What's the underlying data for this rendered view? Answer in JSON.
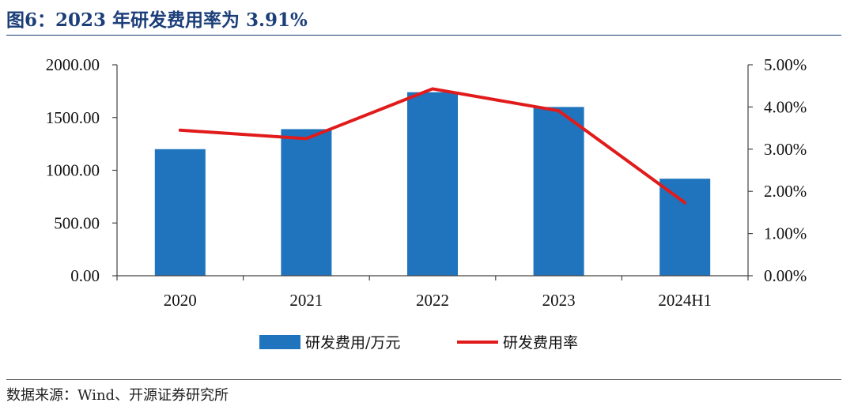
{
  "figure": {
    "title": "图6：2023 年研发费用率为 3.91%",
    "source": "数据来源：Wind、开源证券研究所"
  },
  "colors": {
    "bar": "#1f74bd",
    "line": "#e11b1b",
    "title": "#1c3f7a"
  },
  "chart_data": {
    "type": "bar",
    "categories": [
      "2020",
      "2021",
      "2022",
      "2023",
      "2024H1"
    ],
    "series": [
      {
        "name": "研发费用/万元",
        "type": "bar",
        "axis": "left",
        "values": [
          1200,
          1390,
          1740,
          1600,
          920
        ]
      },
      {
        "name": "研发费用率",
        "type": "line",
        "axis": "right",
        "values": [
          3.45,
          3.25,
          4.43,
          3.91,
          1.73
        ]
      }
    ],
    "y_left": {
      "ylim": [
        0,
        2000
      ],
      "ticks": [
        "0.00",
        "500.00",
        "1000.00",
        "1500.00",
        "2000.00"
      ]
    },
    "y_right": {
      "ylim": [
        0,
        5
      ],
      "ticks": [
        "0.00%",
        "1.00%",
        "2.00%",
        "3.00%",
        "4.00%",
        "5.00%"
      ]
    },
    "legend_position": "bottom",
    "grid": false
  }
}
